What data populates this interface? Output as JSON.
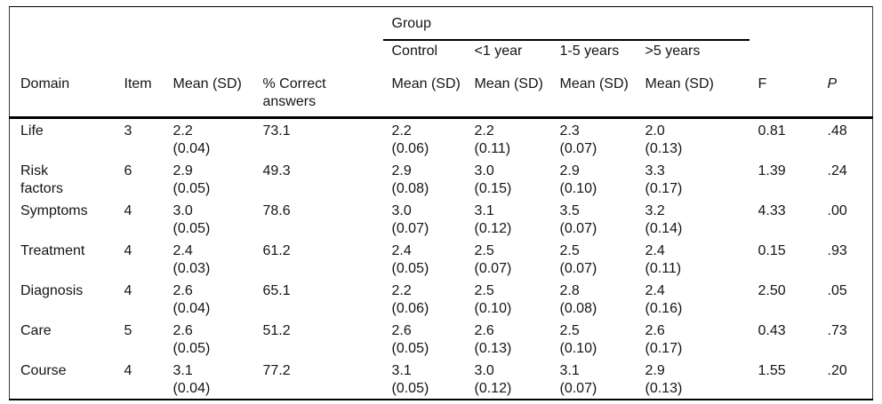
{
  "colors": {
    "background": "#ffffff",
    "text": "#141414",
    "rule": "#000000"
  },
  "table": {
    "group_header": "Group",
    "headers": {
      "domain": "Domain",
      "item": "Item",
      "mean_sd": "Mean (SD)",
      "pct_correct": [
        "% Correct",
        "answers"
      ],
      "group_columns": [
        "Control",
        "<1 year",
        "1-5 years",
        ">5 years"
      ],
      "group_subheader": "Mean (SD)",
      "f": "F",
      "p": "P"
    },
    "rows": [
      {
        "domain": "Life",
        "item": "3",
        "mean_sd": [
          "2.2",
          "(0.04)"
        ],
        "pct_correct": "73.1",
        "control": [
          "2.2",
          "(0.06)"
        ],
        "lt_1_year": [
          "2.2",
          "(0.11)"
        ],
        "years_1_5": [
          "2.3",
          "(0.07)"
        ],
        "gt_5_years": [
          "2.0",
          "(0.13)"
        ],
        "f": "0.81",
        "p": ".48"
      },
      {
        "domain": [
          "Risk",
          "factors"
        ],
        "item": "6",
        "mean_sd": [
          "2.9",
          "(0.05)"
        ],
        "pct_correct": "49.3",
        "control": [
          "2.9",
          "(0.08)"
        ],
        "lt_1_year": [
          "3.0",
          "(0.15)"
        ],
        "years_1_5": [
          "2.9",
          "(0.10)"
        ],
        "gt_5_years": [
          "3.3",
          "(0.17)"
        ],
        "f": "1.39",
        "p": ".24"
      },
      {
        "domain": "Symptoms",
        "item": "4",
        "mean_sd": [
          "3.0",
          "(0.05)"
        ],
        "pct_correct": "78.6",
        "control": [
          "3.0",
          "(0.07)"
        ],
        "lt_1_year": [
          "3.1",
          "(0.12)"
        ],
        "years_1_5": [
          "3.5",
          "(0.07)"
        ],
        "gt_5_years": [
          "3.2",
          "(0.14)"
        ],
        "f": "4.33",
        "p": ".00"
      },
      {
        "domain": "Treatment",
        "item": "4",
        "mean_sd": [
          "2.4",
          "(0.03)"
        ],
        "pct_correct": "61.2",
        "control": [
          "2.4",
          "(0.05)"
        ],
        "lt_1_year": [
          "2.5",
          "(0.07)"
        ],
        "years_1_5": [
          "2.5",
          "(0.07)"
        ],
        "gt_5_years": [
          "2.4",
          "(0.11)"
        ],
        "f": "0.15",
        "p": ".93"
      },
      {
        "domain": "Diagnosis",
        "item": "4",
        "mean_sd": [
          "2.6",
          "(0.04)"
        ],
        "pct_correct": "65.1",
        "control": [
          "2.2",
          "(0.06)"
        ],
        "lt_1_year": [
          "2.5",
          "(0.10)"
        ],
        "years_1_5": [
          "2.8",
          "(0.08)"
        ],
        "gt_5_years": [
          "2.4",
          "(0.16)"
        ],
        "f": "2.50",
        "p": ".05"
      },
      {
        "domain": "Care",
        "item": "5",
        "mean_sd": [
          "2.6",
          "(0.05)"
        ],
        "pct_correct": "51.2",
        "control": [
          "2.6",
          "(0.05)"
        ],
        "lt_1_year": [
          "2.6",
          "(0.13)"
        ],
        "years_1_5": [
          "2.5",
          "(0.10)"
        ],
        "gt_5_years": [
          "2.6",
          "(0.17)"
        ],
        "f": "0.43",
        "p": ".73"
      },
      {
        "domain": "Course",
        "item": "4",
        "mean_sd": [
          "3.1",
          "(0.04)"
        ],
        "pct_correct": "77.2",
        "control": [
          "3.1",
          "(0.05)"
        ],
        "lt_1_year": [
          "3.0",
          "(0.12)"
        ],
        "years_1_5": [
          "3.1",
          "(0.07)"
        ],
        "gt_5_years": [
          "2.9",
          "(0.13)"
        ],
        "f": "1.55",
        "p": ".20"
      }
    ]
  }
}
